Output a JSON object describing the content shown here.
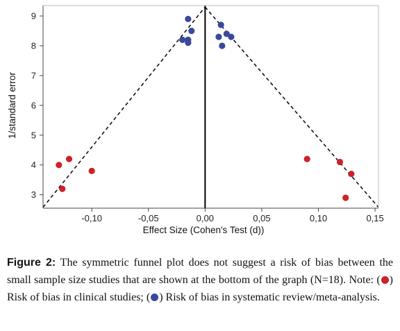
{
  "chart_data": {
    "type": "scatter",
    "xlabel": "Effect Size (Cohen's Test (d))",
    "ylabel": "1/standard error",
    "xlim": [
      -0.143,
      0.153
    ],
    "ylim": [
      2.55,
      9.35
    ],
    "x_ticks": [
      -0.1,
      -0.05,
      0.0,
      0.05,
      0.1,
      0.15
    ],
    "x_tick_labels": [
      "-0,10",
      "-0,05",
      "0,00",
      "0,05",
      "0,10",
      "0,15"
    ],
    "y_ticks": [
      3,
      4,
      5,
      6,
      7,
      8,
      9
    ],
    "y_tick_labels": [
      "3",
      "4",
      "5",
      "6",
      "7",
      "8",
      "9"
    ],
    "grid": false,
    "legend": "none",
    "reference_line": {
      "x": 0.0
    },
    "funnel": {
      "apex": [
        0.0,
        9.3
      ],
      "left_base": [
        -0.143,
        2.58
      ],
      "right_base": [
        0.153,
        2.58
      ]
    },
    "series": [
      {
        "color": "#cc2229",
        "points": [
          [
            -0.129,
            4.0
          ],
          [
            -0.12,
            4.2
          ],
          [
            -0.1,
            3.8
          ],
          [
            -0.126,
            3.2
          ],
          [
            0.09,
            4.2
          ],
          [
            0.119,
            4.1
          ],
          [
            0.129,
            3.7
          ],
          [
            0.124,
            2.9
          ]
        ]
      },
      {
        "color": "#3a4a9a",
        "points": [
          [
            -0.015,
            8.9
          ],
          [
            -0.012,
            8.5
          ],
          [
            -0.02,
            8.2
          ],
          [
            -0.015,
            8.2
          ],
          [
            -0.015,
            8.1
          ],
          [
            0.014,
            8.7
          ],
          [
            0.019,
            8.4
          ],
          [
            0.012,
            8.3
          ],
          [
            0.023,
            8.3
          ],
          [
            0.015,
            8.0
          ]
        ]
      }
    ]
  },
  "caption": {
    "label": "Figure 2:",
    "text_main": " The symmetric funnel plot does not suggest a risk of bias between the small sample size studies that are shown at the bottom of the graph (N=18). Note: ",
    "open_paren_1": "(",
    "after_red": ") Risk of bias in clinical studies; (",
    "after_blue": ") Risk of bias in systematic review/meta-analysis."
  },
  "colors": {
    "red": "#cc2229",
    "blue": "#3a4a9a"
  }
}
